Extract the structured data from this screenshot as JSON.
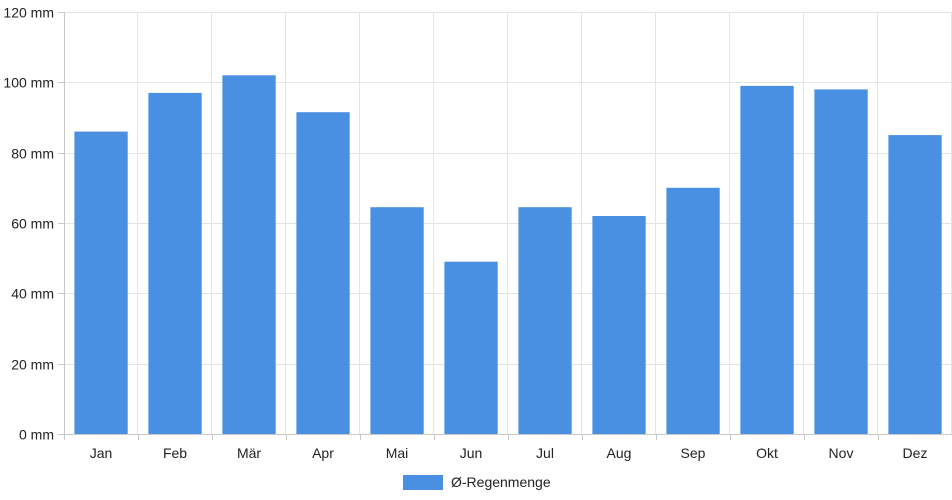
{
  "colors": {
    "bar": "#4a90e2",
    "grid": "#e4e4e4",
    "axis": "#c8c8c8"
  },
  "chart_data": {
    "type": "bar",
    "categories": [
      "Jan",
      "Feb",
      "Mär",
      "Apr",
      "Mai",
      "Jun",
      "Jul",
      "Aug",
      "Sep",
      "Okt",
      "Nov",
      "Dez"
    ],
    "series": [
      {
        "name": "Ø-Regenmenge",
        "values": [
          86,
          97,
          102,
          91.5,
          64.5,
          49,
          64.5,
          62,
          70,
          99,
          98,
          85
        ]
      }
    ],
    "y_ticks": [
      "0 mm",
      "20 mm",
      "40 mm",
      "60 mm",
      "80 mm",
      "100 mm",
      "120 mm"
    ],
    "ylim": [
      0,
      120
    ],
    "y_step": 20,
    "grid": true,
    "legend_position": "bottom-center"
  }
}
